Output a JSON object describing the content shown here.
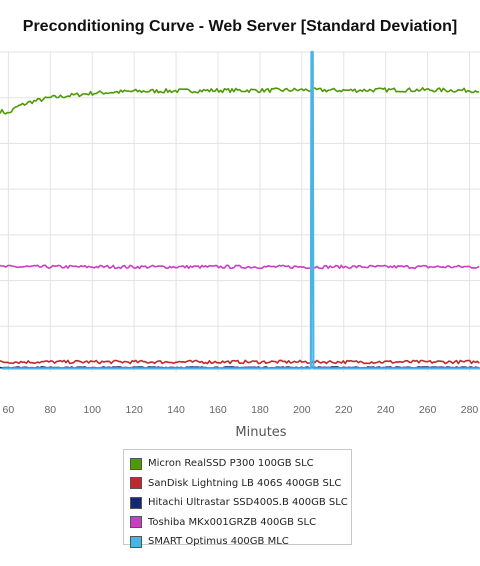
{
  "chart_data": {
    "type": "line",
    "title": "Preconditioning Curve - Web Server [Standard Deviation]",
    "xlabel": "Minutes",
    "ylabel": "",
    "x_ticks": [
      60,
      80,
      100,
      120,
      140,
      160,
      180,
      200,
      220,
      240,
      260,
      280
    ],
    "xlim": [
      56,
      285
    ],
    "ylim": [
      0,
      7
    ],
    "grid": true,
    "legend_position": "bottom",
    "series": [
      {
        "name": "Micron RealSSD P300 100GB SLC",
        "color": "#4e9a06",
        "x": [
          57,
          60,
          64,
          70,
          80,
          90,
          100,
          110,
          120,
          140,
          160,
          180,
          200,
          220,
          240,
          260,
          280,
          285
        ],
        "values": [
          5.7,
          5.65,
          5.8,
          5.9,
          6.0,
          6.05,
          6.1,
          6.12,
          6.14,
          6.15,
          6.16,
          6.16,
          6.17,
          6.16,
          6.17,
          6.17,
          6.16,
          6.16
        ]
      },
      {
        "name": "SanDisk Lightning LB 406S 400GB SLC",
        "color": "#c0292b",
        "x": [
          57,
          285
        ],
        "values": [
          0.22,
          0.22
        ]
      },
      {
        "name": "Hitachi Ultrastar SSD400S.B 400GB SLC",
        "color": "#14287a",
        "x": [
          57,
          285
        ],
        "values": [
          0.1,
          0.1
        ]
      },
      {
        "name": "Toshiba MKx001GRZB 400GB SLC",
        "color": "#cc3cc4",
        "x": [
          57,
          285
        ],
        "values": [
          2.3,
          2.3
        ]
      },
      {
        "name": "SMART Optimus 400GB MLC",
        "color": "#4ab3e8",
        "x": [
          57,
          204,
          204.3,
          204.6,
          205.2,
          205.5,
          205.8,
          285
        ],
        "values": [
          0.08,
          0.08,
          0.08,
          7,
          7,
          0.08,
          0.08,
          0.08
        ]
      }
    ]
  }
}
